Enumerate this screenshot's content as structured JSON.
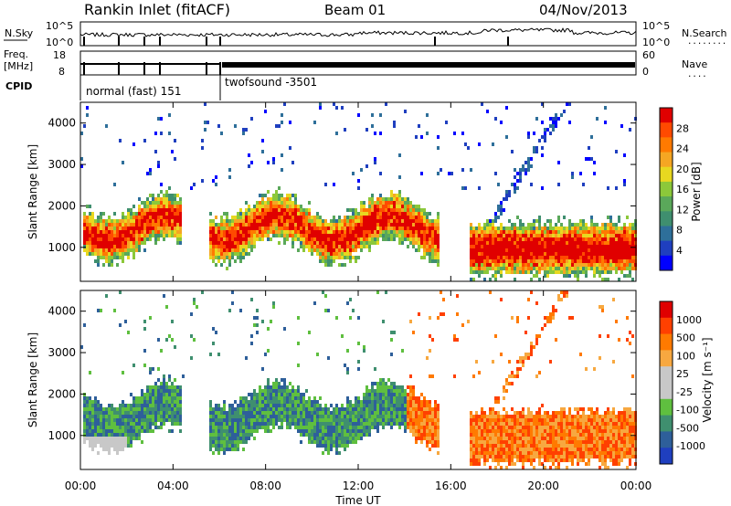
{
  "header": {
    "station": "Rankin Inlet (fitACF)",
    "beam": "Beam 01",
    "date": "04/Nov/2013"
  },
  "panels": {
    "nsky": {
      "left_label": "N.Sky",
      "right_label": "N.Search",
      "left_ticks": [
        "10^5",
        "10^0"
      ],
      "right_ticks": [
        "10^5",
        "10^0"
      ]
    },
    "freq": {
      "left_label_1": "Freq.",
      "left_label_2": "[MHz]",
      "left_ticks": [
        "18",
        "8"
      ],
      "right_label": "Nave",
      "right_ticks": [
        "60",
        "0"
      ]
    },
    "cpid": {
      "label": "CPID",
      "segments": [
        "normal (fast) 151",
        "twofsound -3501"
      ]
    }
  },
  "legend": {
    "nsearch_dots": "........",
    "nave_dots": "...."
  },
  "colors": {
    "power_scale": [
      "#0000ff",
      "#1f3fbf",
      "#2e6f9a",
      "#3f8f6f",
      "#5aa85a",
      "#8cc83a",
      "#e8d820",
      "#f5a623",
      "#ff7a00",
      "#ff4a00",
      "#e00000"
    ],
    "velocity_scale": [
      "#e00000",
      "#ff4000",
      "#ff7a00",
      "#f7a840",
      "#c8c8c8",
      "#c8c8c8",
      "#5fbf3f",
      "#3f8f6f",
      "#2e5f9a",
      "#1f3fbf"
    ],
    "ground_scatter": "#c0c0c0"
  },
  "chart_data": [
    {
      "type": "heatmap",
      "title": "",
      "ylabel": "Slant Range [km]",
      "xlabel": "Time UT",
      "ylim": [
        180,
        4500
      ],
      "xlim": [
        "00:00",
        "24:00"
      ],
      "yticks": [
        "1000",
        "2000",
        "3000",
        "4000"
      ],
      "xticks": [
        "00:00",
        "04:00",
        "08:00",
        "12:00",
        "16:00",
        "20:00",
        "00:00"
      ],
      "colorbar": {
        "label": "Power [dB]",
        "ticks": [
          "4",
          "8",
          "12",
          "16",
          "20",
          "24",
          "28"
        ]
      },
      "quantity": "power"
    },
    {
      "type": "heatmap",
      "title": "",
      "ylabel": "Slant Range [km]",
      "xlabel": "Time UT",
      "ylim": [
        180,
        4500
      ],
      "xlim": [
        "00:00",
        "24:00"
      ],
      "yticks": [
        "1000",
        "2000",
        "3000",
        "4000"
      ],
      "xticks": [
        "00:00",
        "04:00",
        "08:00",
        "12:00",
        "16:00",
        "20:00",
        "00:00"
      ],
      "colorbar": {
        "label": "Velocity [m s⁻¹]",
        "ticks": [
          "1000",
          "500",
          "100",
          "25",
          "-25",
          "-100",
          "-500",
          "-1000"
        ]
      },
      "quantity": "velocity"
    }
  ]
}
